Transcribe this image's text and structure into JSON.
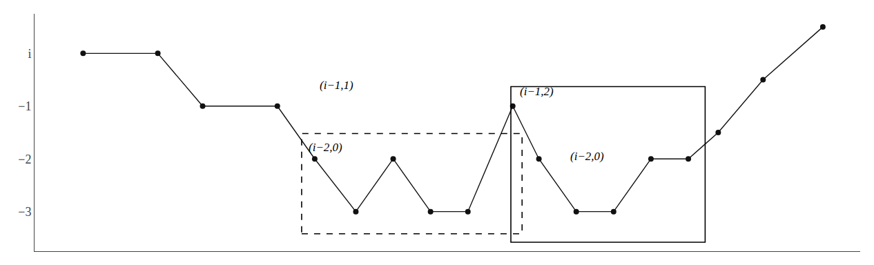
{
  "chart_data": {
    "type": "line",
    "x": [
      1.0,
      3.0,
      4.2,
      6.2,
      7.2,
      8.3,
      9.3,
      10.3,
      11.3,
      12.5,
      13.2,
      14.2,
      15.2,
      16.2,
      17.2,
      18.0,
      19.2,
      20.8
    ],
    "values": [
      0,
      0,
      -1,
      -1,
      -2,
      -3,
      -2,
      -3,
      -3,
      -1,
      -2,
      -3,
      -3,
      -2,
      -2,
      -1.5,
      -0.5,
      0.5
    ],
    "color": "#111111",
    "marker": "circle",
    "line_style": "solid",
    "xlim": [
      -0.3,
      21.8
    ],
    "ylim": [
      -3.75,
      0.75
    ],
    "yticks": [
      {
        "value": 0,
        "label": "i"
      },
      {
        "value": -1,
        "label": "−1"
      },
      {
        "value": -2,
        "label": "−2"
      },
      {
        "value": -3,
        "label": "−3"
      }
    ],
    "tick_labels": "y",
    "grid": false,
    "rectangles": [
      {
        "x0": 6.85,
        "y0": -3.42,
        "x1": 12.75,
        "y1": -1.52,
        "line_style": "dash"
      },
      {
        "x0": 12.45,
        "y0": -3.58,
        "x1": 17.65,
        "y1": -0.63,
        "line_style": "solid"
      }
    ],
    "annotations": [
      {
        "text": "(i−1,1)",
        "x": 7.3,
        "y": -0.6
      },
      {
        "text": "(i−2,0)",
        "x": 7.0,
        "y": -1.78
      },
      {
        "text": "(i−1,2)",
        "x": 12.65,
        "y": -0.72
      },
      {
        "text": "(i−2,0)",
        "x": 14.0,
        "y": -1.95
      }
    ]
  }
}
